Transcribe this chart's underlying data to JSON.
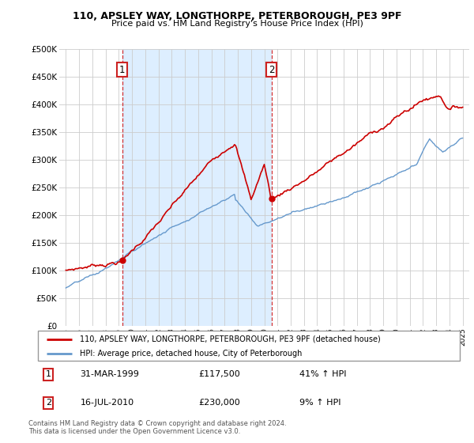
{
  "title": "110, APSLEY WAY, LONGTHORPE, PETERBOROUGH, PE3 9PF",
  "subtitle": "Price paid vs. HM Land Registry's House Price Index (HPI)",
  "legend_label_red": "110, APSLEY WAY, LONGTHORPE, PETERBOROUGH, PE3 9PF (detached house)",
  "legend_label_blue": "HPI: Average price, detached house, City of Peterborough",
  "annotation1_date": "31-MAR-1999",
  "annotation1_price": "£117,500",
  "annotation1_hpi": "41% ↑ HPI",
  "annotation2_date": "16-JUL-2010",
  "annotation2_price": "£230,000",
  "annotation2_hpi": "9% ↑ HPI",
  "footnote": "Contains HM Land Registry data © Crown copyright and database right 2024.\nThis data is licensed under the Open Government Licence v3.0.",
  "sale1_year": 1999.25,
  "sale1_price": 117500,
  "sale2_year": 2010.54,
  "sale2_price": 230000,
  "red_color": "#cc0000",
  "blue_color": "#6699cc",
  "shade_color": "#ddeeff",
  "annotation_box_color": "#cc2222",
  "grid_color": "#cccccc",
  "background_color": "#ffffff"
}
